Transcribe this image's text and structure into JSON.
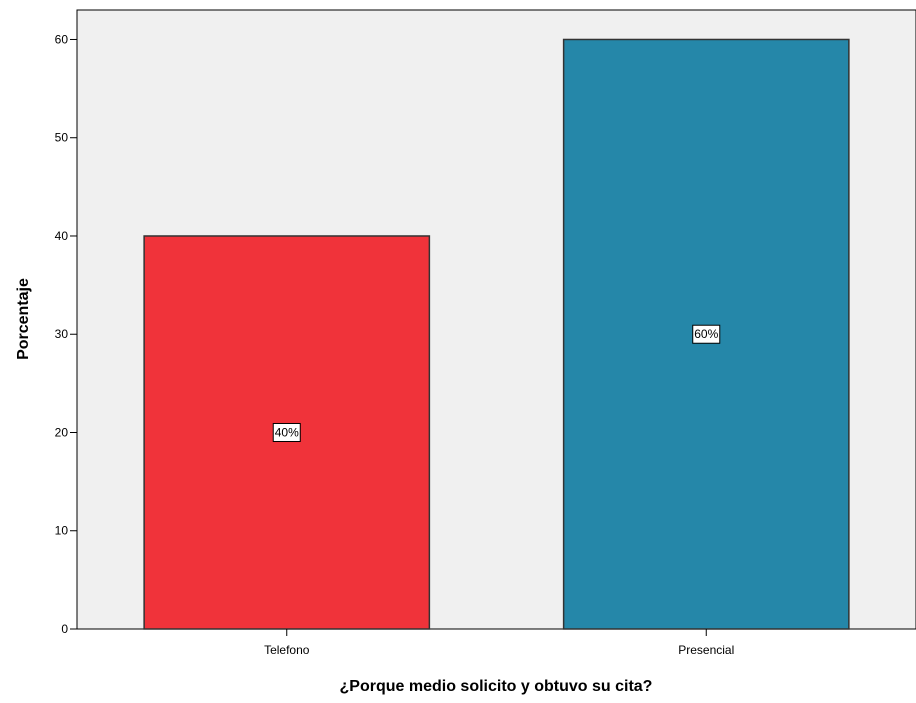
{
  "chart_data": {
    "type": "bar",
    "title": "",
    "xlabel": "¿Porque medio solicito y obtuvo su cita?",
    "ylabel": "Porcentaje",
    "categories": [
      "Telefono",
      "Presencial"
    ],
    "values": [
      40,
      60
    ],
    "data_labels": [
      "40%",
      "60%"
    ],
    "colors": [
      "#f0333a",
      "#2587a9"
    ],
    "ylim": [
      0,
      63
    ],
    "yticks": [
      0,
      10,
      20,
      30,
      40,
      50,
      60
    ],
    "grid": false,
    "legend": "none",
    "plot_background": "#f0f0f0",
    "bar_outline": "#333333"
  }
}
